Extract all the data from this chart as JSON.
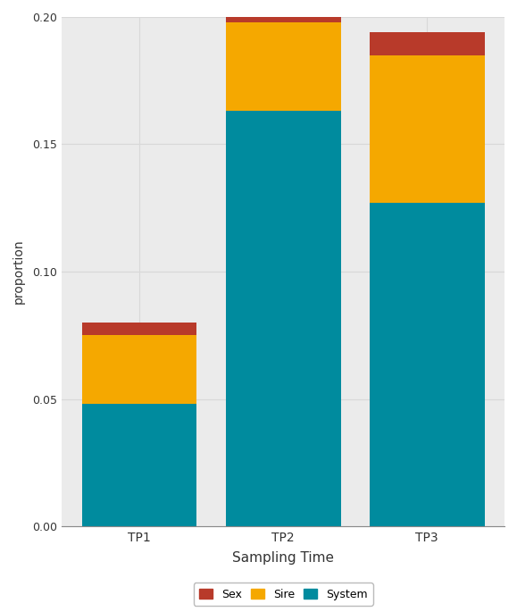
{
  "categories": [
    "TP1",
    "TP2",
    "TP3"
  ],
  "system": [
    0.048,
    0.163,
    0.127
  ],
  "sire": [
    0.027,
    0.035,
    0.058
  ],
  "sex": [
    0.005,
    0.002,
    0.009
  ],
  "colors": {
    "System": "#008B9E",
    "Sire": "#F5A800",
    "Sex": "#B83A2A"
  },
  "xlabel": "Sampling Time",
  "ylabel": "proportion",
  "ylim": [
    0.0,
    0.2
  ],
  "yticks": [
    0.0,
    0.05,
    0.1,
    0.15,
    0.2
  ],
  "bar_width": 0.8,
  "background_color": "#FFFFFF",
  "grid_color": "#D8D8D8",
  "panel_background": "#EBEBEB"
}
